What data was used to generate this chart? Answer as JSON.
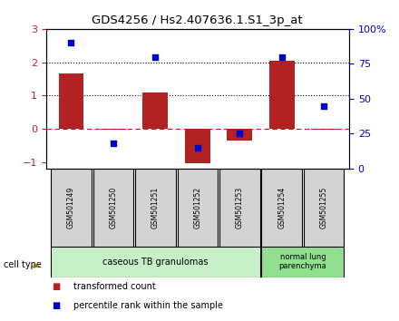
{
  "title": "GDS4256 / Hs2.407636.1.S1_3p_at",
  "samples": [
    "GSM501249",
    "GSM501250",
    "GSM501251",
    "GSM501252",
    "GSM501253",
    "GSM501254",
    "GSM501255"
  ],
  "transformed_counts": [
    1.65,
    -0.02,
    1.1,
    -1.05,
    -0.35,
    2.05,
    -0.02
  ],
  "percentile_ranks": [
    90,
    18,
    80,
    15,
    25,
    80,
    45
  ],
  "ylim_left": [
    -1.2,
    3.0
  ],
  "ylim_right": [
    0,
    100
  ],
  "right_ticks": [
    0,
    25,
    50,
    75,
    100
  ],
  "right_tick_labels": [
    "0",
    "25",
    "50",
    "75",
    "100%"
  ],
  "left_ticks": [
    -1,
    0,
    1,
    2,
    3
  ],
  "groups": [
    {
      "label": "caseous TB granulomas",
      "start": 0,
      "end": 4,
      "color": "#c8f0c8"
    },
    {
      "label": "normal lung\nparenchyma",
      "start": 5,
      "end": 6,
      "color": "#90e090"
    }
  ],
  "bar_color": "#b22222",
  "scatter_color": "#0000cd",
  "dotted_lines": [
    1,
    2
  ],
  "dashed_line_y": 0,
  "bar_width": 0.6,
  "cell_type_label": "cell type",
  "legend_items": [
    {
      "color": "#b22222",
      "label": "transformed count"
    },
    {
      "color": "#0000cd",
      "label": "percentile rank within the sample"
    }
  ],
  "background_color": "#ffffff",
  "plot_bg_color": "#ffffff"
}
